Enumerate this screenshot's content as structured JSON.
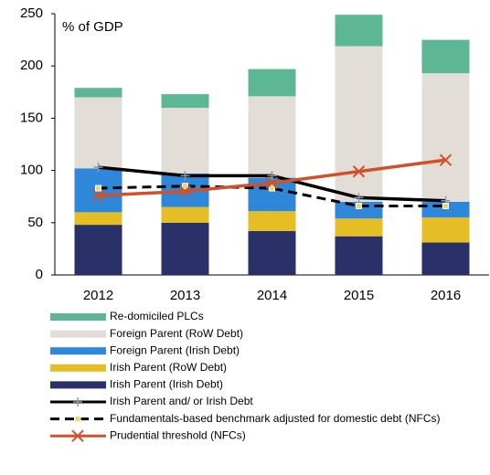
{
  "chart_data": {
    "type": "stacked-bar-line",
    "ylabel": "% of GDP",
    "categories": [
      "2012",
      "2013",
      "2014",
      "2015",
      "2016"
    ],
    "ylim": [
      0,
      250
    ],
    "yticks": [
      0,
      50,
      100,
      150,
      200,
      250
    ],
    "series": [
      {
        "name": "Re-domiciled PLCs",
        "color": "#5db795",
        "kind": "bar",
        "values": [
          9,
          13,
          26,
          30,
          32
        ]
      },
      {
        "name": "Foreign Parent (RoW Debt)",
        "color": "#e3ddd8",
        "kind": "bar",
        "values": [
          68,
          63,
          78,
          149,
          123
        ]
      },
      {
        "name": "Foreign Parent (Irish Debt)",
        "color": "#2e87d8",
        "kind": "bar",
        "values": [
          42,
          32,
          32,
          16,
          15
        ]
      },
      {
        "name": "Irish Parent (RoW Debt)",
        "color": "#e5bd24",
        "kind": "bar",
        "values": [
          12,
          15,
          19,
          17,
          24
        ]
      },
      {
        "name": "Irish Parent (Irish Debt)",
        "color": "#2a3168",
        "kind": "bar",
        "values": [
          48,
          50,
          42,
          37,
          31
        ]
      },
      {
        "name": "Irish Parent and/ or Irish Debt",
        "color": "#000000",
        "kind": "line",
        "marker": "plus",
        "values": [
          103,
          95,
          95,
          74,
          71
        ]
      },
      {
        "name": "Fundamentals-based benchmark adjusted for domestic debt (NFCs)",
        "color": "#000000",
        "kind": "line",
        "dash": true,
        "marker": "square",
        "values": [
          83,
          85,
          83,
          66,
          66
        ]
      },
      {
        "name": "Prudential threshold (NFCs)",
        "color": "#d2502a",
        "kind": "line",
        "marker": "x",
        "values": [
          76,
          80,
          88,
          99,
          110
        ]
      }
    ]
  }
}
